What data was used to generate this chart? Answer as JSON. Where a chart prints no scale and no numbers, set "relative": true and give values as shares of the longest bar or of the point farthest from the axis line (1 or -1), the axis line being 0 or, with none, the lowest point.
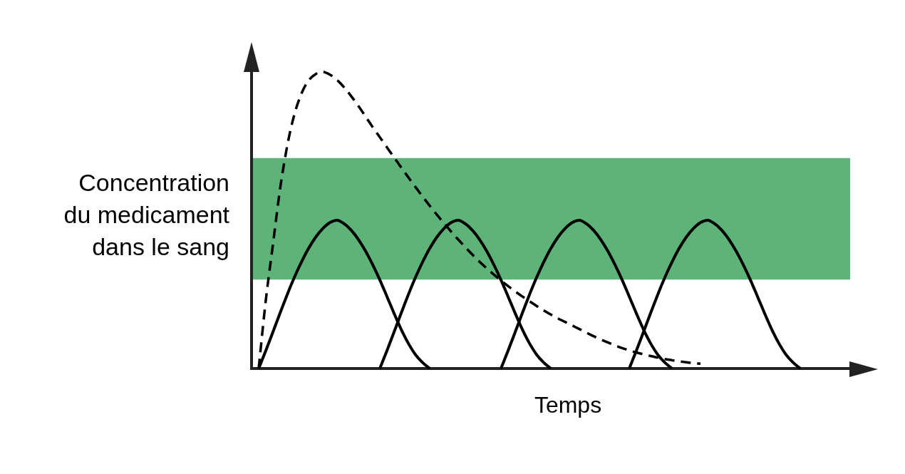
{
  "chart_data": {
    "type": "line",
    "relative": true,
    "xlabel": "Temps",
    "ylabel": "Concentration du medicament dans le sang",
    "marker": "none",
    "categories": [
      null,
      null,
      null,
      null,
      null,
      null,
      null,
      null,
      null,
      null,
      null,
      null,
      null,
      null,
      null,
      null,
      null,
      null,
      null,
      null,
      null,
      null,
      null,
      null,
      null,
      null,
      null,
      null,
      null,
      null,
      null,
      null,
      null,
      null,
      null,
      null,
      null,
      null,
      null,
      null,
      null,
      null,
      null,
      null,
      null,
      null,
      null,
      null,
      null,
      null,
      null,
      null,
      null,
      null,
      null,
      null,
      null,
      null,
      null,
      null,
      null,
      null,
      null,
      null,
      null,
      null,
      null,
      null,
      null,
      null,
      null,
      null,
      null,
      null,
      null,
      null,
      null,
      null,
      null,
      null,
      null,
      null,
      null,
      null,
      null
    ],
    "series": [
      {
        "color": "#000000",
        "line_style": "dashed",
        "values": [
          null,
          0,
          0.23,
          0.418,
          0.605,
          0.75,
          0.856,
          0.927,
          0.971,
          0.993,
          1,
          0.991,
          0.973,
          0.948,
          0.918,
          0.885,
          0.85,
          0.814,
          0.78,
          0.746,
          0.712,
          0.678,
          0.645,
          0.612,
          0.58,
          0.549,
          0.519,
          0.49,
          0.462,
          0.435,
          0.409,
          0.384,
          0.36,
          0.338,
          0.317,
          0.297,
          0.278,
          0.26,
          0.243,
          0.227,
          0.211,
          0.196,
          0.182,
          0.169,
          0.157,
          0.145,
          0.133,
          0.121,
          0.109,
          0.098,
          0.088,
          0.078,
          0.069,
          0.061,
          0.054,
          0.048,
          0.042,
          0.037,
          0.032,
          0.028,
          0.024,
          0.021,
          0.018,
          0.016,
          null,
          null,
          null,
          null,
          null,
          null,
          null,
          null,
          null,
          null,
          null,
          null,
          null,
          null,
          null,
          null,
          null,
          null,
          null,
          null,
          null
        ]
      },
      {
        "color": "#000000",
        "line_style": "solid",
        "values": [
          null,
          0,
          0.06,
          0.123,
          0.187,
          0.249,
          0.307,
          0.359,
          0.405,
          0.443,
          0.472,
          0.492,
          0.5,
          0.488,
          0.466,
          0.435,
          0.396,
          0.35,
          0.299,
          0.243,
          0.186,
          0.132,
          0.085,
          0.047,
          0.02,
          0,
          null,
          null,
          null,
          null,
          null,
          null,
          null,
          null,
          null,
          null,
          null,
          null,
          null,
          null,
          null,
          null,
          null,
          null,
          null,
          null,
          null,
          null,
          null,
          null,
          null,
          null,
          null,
          null,
          null,
          null,
          null,
          null,
          null,
          null,
          null,
          null,
          null,
          null,
          null,
          null,
          null,
          null,
          null,
          null,
          null,
          null,
          null,
          null,
          null,
          null,
          null,
          null,
          null,
          null,
          null,
          null,
          null,
          null,
          null
        ]
      },
      {
        "color": "#000000",
        "line_style": "solid",
        "values": [
          null,
          null,
          null,
          null,
          null,
          null,
          null,
          null,
          null,
          null,
          null,
          null,
          null,
          null,
          null,
          null,
          null,
          null,
          0,
          0.06,
          0.123,
          0.187,
          0.249,
          0.307,
          0.359,
          0.405,
          0.443,
          0.472,
          0.492,
          0.5,
          0.488,
          0.466,
          0.435,
          0.396,
          0.35,
          0.299,
          0.243,
          0.186,
          0.132,
          0.085,
          0.047,
          0.02,
          0,
          null,
          null,
          null,
          null,
          null,
          null,
          null,
          null,
          null,
          null,
          null,
          null,
          null,
          null,
          null,
          null,
          null,
          null,
          null,
          null,
          null,
          null,
          null,
          null,
          null,
          null,
          null,
          null,
          null,
          null,
          null,
          null,
          null,
          null,
          null,
          null,
          null,
          null,
          null,
          null,
          null,
          null
        ]
      },
      {
        "color": "#000000",
        "line_style": "solid",
        "values": [
          null,
          null,
          null,
          null,
          null,
          null,
          null,
          null,
          null,
          null,
          null,
          null,
          null,
          null,
          null,
          null,
          null,
          null,
          null,
          null,
          null,
          null,
          null,
          null,
          null,
          null,
          null,
          null,
          null,
          null,
          null,
          null,
          null,
          null,
          null,
          0,
          0.06,
          0.123,
          0.187,
          0.249,
          0.307,
          0.359,
          0.405,
          0.443,
          0.472,
          0.492,
          0.5,
          0.488,
          0.466,
          0.435,
          0.396,
          0.35,
          0.299,
          0.243,
          0.186,
          0.132,
          0.085,
          0.047,
          0.02,
          0,
          null,
          null,
          null,
          null,
          null,
          null,
          null,
          null,
          null,
          null,
          null,
          null,
          null,
          null,
          null,
          null,
          null,
          null,
          null,
          null,
          null,
          null,
          null,
          null,
          null
        ]
      },
      {
        "color": "#000000",
        "line_style": "solid",
        "values": [
          null,
          null,
          null,
          null,
          null,
          null,
          null,
          null,
          null,
          null,
          null,
          null,
          null,
          null,
          null,
          null,
          null,
          null,
          null,
          null,
          null,
          null,
          null,
          null,
          null,
          null,
          null,
          null,
          null,
          null,
          null,
          null,
          null,
          null,
          null,
          null,
          null,
          null,
          null,
          null,
          null,
          null,
          null,
          null,
          null,
          null,
          null,
          null,
          null,
          null,
          null,
          null,
          null,
          0,
          0.06,
          0.123,
          0.187,
          0.249,
          0.307,
          0.359,
          0.405,
          0.443,
          0.472,
          0.492,
          0.5,
          0.488,
          0.466,
          0.435,
          0.396,
          0.35,
          0.299,
          0.243,
          0.186,
          0.132,
          0.085,
          0.047,
          0.02,
          0,
          null,
          null,
          null,
          null,
          null,
          null,
          null
        ]
      }
    ],
    "bands": [
      {
        "axis": "y",
        "from": 0.3,
        "to": 0.71,
        "color": "#5eb378"
      }
    ]
  }
}
